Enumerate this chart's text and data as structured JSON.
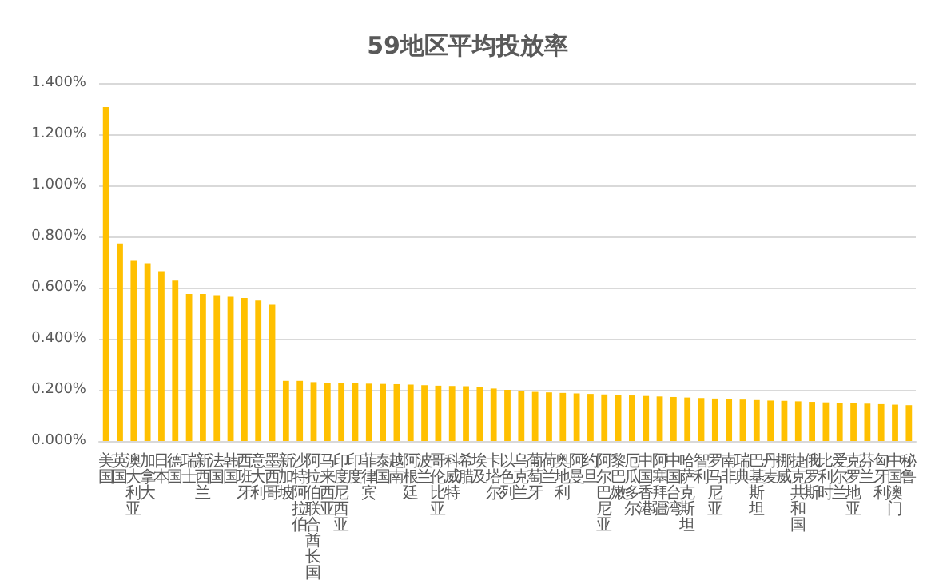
{
  "chart_data": {
    "type": "bar",
    "title": "59地区平均投放率",
    "categories": [
      "美国",
      "英国",
      "澳大利亚",
      "加拿大",
      "日本",
      "德国",
      "瑞士",
      "新西兰",
      "法国",
      "韩国",
      "西班牙",
      "意大利",
      "墨西哥",
      "新加坡",
      "沙特阿拉伯",
      "阿拉伯联合酋长国",
      "马来西亚",
      "印度尼西亚",
      "印度",
      "菲律宾",
      "泰国",
      "越南",
      "阿根廷",
      "波兰",
      "哥伦比亚",
      "科威特",
      "希腊",
      "埃及",
      "卡塔尔",
      "以色列",
      "乌克兰",
      "葡萄牙",
      "荷兰",
      "奥地利",
      "阿曼",
      "约旦",
      "阿尔巴尼亚",
      "黎巴嫩",
      "厄瓜多尔",
      "中国香港",
      "阿塞拜疆",
      "中国台湾",
      "哈萨克斯坦",
      "智利",
      "罗马尼亚",
      "南非",
      "瑞典",
      "巴基斯坦",
      "丹麦",
      "挪威",
      "捷克共和国",
      "俄罗斯",
      "比利时",
      "爱尔兰",
      "克罗地亚",
      "芬兰",
      "匈牙利",
      "中国澳门",
      "秘鲁"
    ],
    "values": [
      1.306,
      0.773,
      0.705,
      0.695,
      0.664,
      0.627,
      0.575,
      0.575,
      0.57,
      0.564,
      0.559,
      0.549,
      0.533,
      0.235,
      0.235,
      0.23,
      0.228,
      0.226,
      0.225,
      0.224,
      0.223,
      0.222,
      0.22,
      0.218,
      0.216,
      0.215,
      0.214,
      0.21,
      0.205,
      0.2,
      0.195,
      0.192,
      0.19,
      0.188,
      0.186,
      0.184,
      0.182,
      0.18,
      0.178,
      0.176,
      0.174,
      0.172,
      0.17,
      0.168,
      0.166,
      0.164,
      0.162,
      0.16,
      0.158,
      0.157,
      0.155,
      0.153,
      0.151,
      0.15,
      0.148,
      0.146,
      0.144,
      0.142,
      0.14
    ],
    "color": "#ffc000",
    "ylim": [
      0,
      1.4
    ],
    "yticks": [
      {
        "value": 0,
        "label": "0.000%"
      },
      {
        "value": 0.2,
        "label": "0.200%"
      },
      {
        "value": 0.4,
        "label": "0.400%"
      },
      {
        "value": 0.6,
        "label": "0.600%"
      },
      {
        "value": 0.8,
        "label": "0.800%"
      },
      {
        "value": 1.0,
        "label": "1.000%"
      },
      {
        "value": 1.2,
        "label": "1.200%"
      },
      {
        "value": 1.4,
        "label": "1.400%"
      }
    ],
    "grid": "y"
  }
}
